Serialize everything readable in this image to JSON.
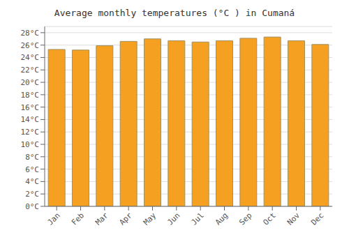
{
  "chart_data": {
    "type": "bar",
    "title": "Average monthly temperatures (°C ) in Cumaná",
    "categories": [
      "Jan",
      "Feb",
      "Mar",
      "Apr",
      "May",
      "Jun",
      "Jul",
      "Aug",
      "Sep",
      "Oct",
      "Nov",
      "Dec"
    ],
    "values": [
      25.3,
      25.2,
      25.9,
      26.6,
      27.0,
      26.7,
      26.5,
      26.7,
      27.1,
      27.3,
      26.7,
      26.1
    ],
    "color": "#F5A020",
    "ylim": [
      0,
      29
    ],
    "yticks": [
      {
        "value": 0,
        "label": "0°C"
      },
      {
        "value": 2,
        "label": "2°C"
      },
      {
        "value": 4,
        "label": "4°C"
      },
      {
        "value": 6,
        "label": "6°C"
      },
      {
        "value": 8,
        "label": "8°C"
      },
      {
        "value": 10,
        "label": "10°C"
      },
      {
        "value": 12,
        "label": "12°C"
      },
      {
        "value": 14,
        "label": "14°C"
      },
      {
        "value": 16,
        "label": "16°C"
      },
      {
        "value": 18,
        "label": "18°C"
      },
      {
        "value": 20,
        "label": "20°C"
      },
      {
        "value": 22,
        "label": "22°C"
      },
      {
        "value": 24,
        "label": "24°C"
      },
      {
        "value": 26,
        "label": "26°C"
      },
      {
        "value": 28,
        "label": "28°C"
      }
    ],
    "grid": true
  }
}
